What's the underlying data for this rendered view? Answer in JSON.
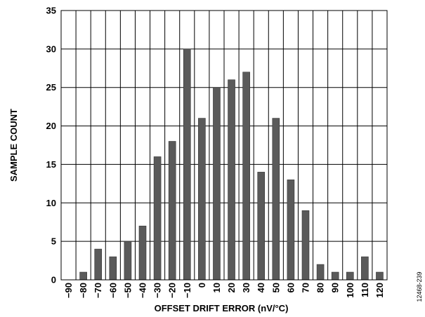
{
  "chart_data": {
    "type": "bar",
    "categories": [
      "−90",
      "−80",
      "−70",
      "−60",
      "−50",
      "−40",
      "−30",
      "−20",
      "−10",
      "0",
      "10",
      "20",
      "30",
      "40",
      "50",
      "60",
      "70",
      "80",
      "90",
      "100",
      "110",
      "120"
    ],
    "values": [
      0,
      1,
      4,
      3,
      5,
      7,
      16,
      18,
      30,
      21,
      25,
      26,
      27,
      14,
      21,
      13,
      9,
      2,
      1,
      1,
      3,
      1
    ],
    "xlabel": "OFFSET DRIFT ERROR (nV/°C)",
    "ylabel": "SAMPLE COUNT",
    "ylim": [
      0,
      35
    ],
    "yticks": [
      0,
      5,
      10,
      15,
      20,
      25,
      30,
      35
    ],
    "grid": true,
    "bar_color": "#5a5a5a",
    "figure_code": "12468-239"
  }
}
